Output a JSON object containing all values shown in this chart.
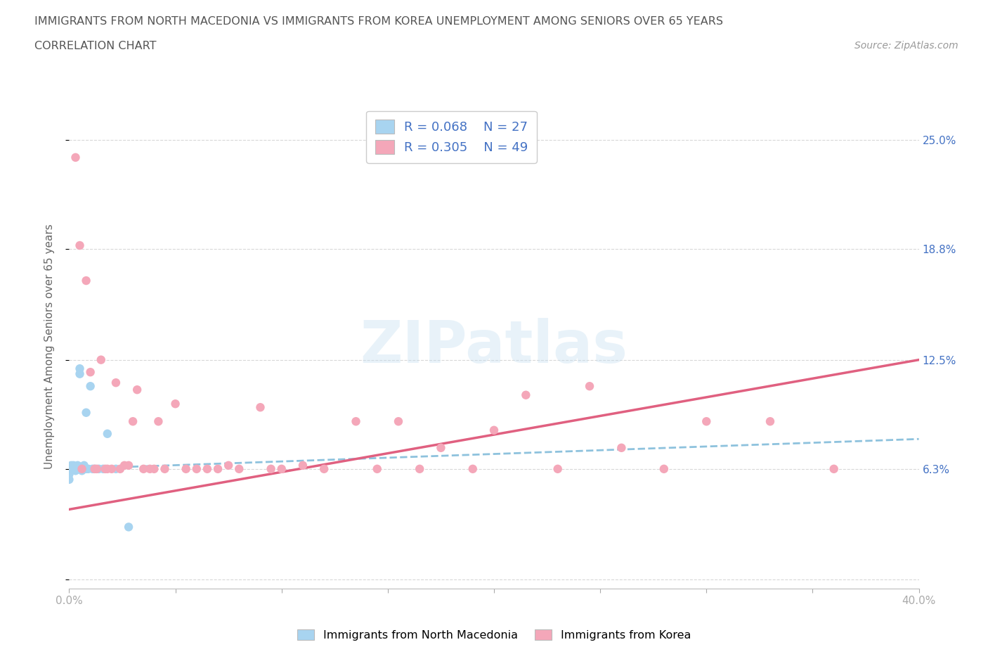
{
  "title_line1": "IMMIGRANTS FROM NORTH MACEDONIA VS IMMIGRANTS FROM KOREA UNEMPLOYMENT AMONG SENIORS OVER 65 YEARS",
  "title_line2": "CORRELATION CHART",
  "source_text": "Source: ZipAtlas.com",
  "ylabel": "Unemployment Among Seniors over 65 years",
  "xlim": [
    0.0,
    0.4
  ],
  "ylim": [
    -0.005,
    0.27
  ],
  "color_macedonia": "#a8d4f0",
  "color_korea": "#f4a7b9",
  "line_color_macedonia": "#7ab8d8",
  "line_color_korea": "#e06080",
  "R_macedonia": 0.068,
  "N_macedonia": 27,
  "R_korea": 0.305,
  "N_korea": 49,
  "macedonia_x": [
    0.0,
    0.0,
    0.0,
    0.001,
    0.001,
    0.002,
    0.002,
    0.003,
    0.003,
    0.004,
    0.004,
    0.005,
    0.005,
    0.006,
    0.006,
    0.007,
    0.008,
    0.008,
    0.009,
    0.01,
    0.011,
    0.012,
    0.014,
    0.016,
    0.018,
    0.022,
    0.028
  ],
  "macedonia_y": [
    0.063,
    0.06,
    0.057,
    0.065,
    0.062,
    0.063,
    0.065,
    0.063,
    0.062,
    0.065,
    0.063,
    0.12,
    0.117,
    0.063,
    0.062,
    0.065,
    0.063,
    0.095,
    0.063,
    0.11,
    0.063,
    0.063,
    0.063,
    0.063,
    0.083,
    0.063,
    0.03
  ],
  "korea_x": [
    0.003,
    0.005,
    0.006,
    0.008,
    0.01,
    0.012,
    0.013,
    0.015,
    0.017,
    0.018,
    0.02,
    0.022,
    0.024,
    0.026,
    0.028,
    0.03,
    0.032,
    0.035,
    0.038,
    0.04,
    0.042,
    0.045,
    0.05,
    0.055,
    0.06,
    0.065,
    0.07,
    0.075,
    0.08,
    0.09,
    0.095,
    0.1,
    0.11,
    0.12,
    0.135,
    0.145,
    0.155,
    0.165,
    0.175,
    0.19,
    0.2,
    0.215,
    0.23,
    0.245,
    0.26,
    0.28,
    0.3,
    0.33,
    0.36
  ],
  "korea_y": [
    0.24,
    0.19,
    0.063,
    0.17,
    0.118,
    0.063,
    0.063,
    0.125,
    0.063,
    0.063,
    0.063,
    0.112,
    0.063,
    0.065,
    0.065,
    0.09,
    0.108,
    0.063,
    0.063,
    0.063,
    0.09,
    0.063,
    0.1,
    0.063,
    0.063,
    0.063,
    0.063,
    0.065,
    0.063,
    0.098,
    0.063,
    0.063,
    0.065,
    0.063,
    0.09,
    0.063,
    0.09,
    0.063,
    0.075,
    0.063,
    0.085,
    0.105,
    0.063,
    0.11,
    0.075,
    0.063,
    0.09,
    0.09,
    0.063
  ],
  "watermark": "ZIPatlas",
  "legend_R_color": "#4472C4",
  "background_color": "#ffffff",
  "grid_color": "#d8d8d8",
  "ytick_vals": [
    0.0,
    0.063,
    0.125,
    0.188,
    0.25
  ],
  "ytick_labels": [
    "",
    "6.3%",
    "12.5%",
    "18.8%",
    "25.0%"
  ],
  "xtick_vals": [
    0.0,
    0.05,
    0.1,
    0.15,
    0.2,
    0.25,
    0.3,
    0.35,
    0.4
  ],
  "xtick_labels": [
    "0.0%",
    "",
    "",
    "",
    "",
    "",
    "",
    "",
    "40.0%"
  ]
}
